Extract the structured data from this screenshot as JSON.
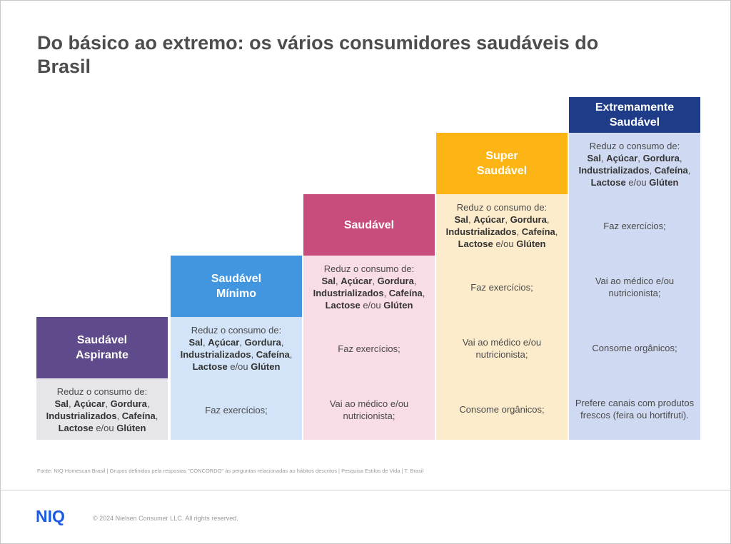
{
  "title": "Do básico ao extremo: os vários consumidores saudáveis do Brasil",
  "reduce": {
    "prefix": "Reduz o consumo de:",
    "items": [
      "Sal",
      "Açúcar",
      "Gordura",
      "Industrializados",
      "Cafeína",
      "Lactose",
      "Glúten"
    ],
    "sep": ", ",
    "connector": " e/ou "
  },
  "columns": [
    {
      "name": "Saudável Aspirante",
      "line1": "Saudável",
      "line2": "Aspirante",
      "head_color": "#5f4b8b",
      "body_color": "#e6e6ea",
      "cells": []
    },
    {
      "name": "Saudável Mínimo",
      "line1": "Saudável",
      "line2": "Mínimo",
      "head_color": "#4296e0",
      "body_color": "#d3e4f8",
      "cells": [
        "Faz exercícios;"
      ]
    },
    {
      "name": "Saudável",
      "line1": "Saudável",
      "line2": "",
      "head_color": "#c84c7c",
      "body_color": "#f9dde6",
      "cells": [
        "Faz exercícios;",
        "Vai ao médico e/ou nutricionista;"
      ]
    },
    {
      "name": "Super Saudável",
      "line1": "Super",
      "line2": "Saudável",
      "head_color": "#fdb515",
      "body_color": "#fdeccb",
      "cells": [
        "Faz exercícios;",
        "Vai ao médico e/ou nutricionista;",
        "Consome orgânicos;"
      ]
    },
    {
      "name": "Extremamente Saudável",
      "line1": "Extremamente",
      "line2": "Saudável",
      "head_color": "#1f3c88",
      "body_color": "#cfdaf2",
      "cells": [
        "Faz exercícios;",
        "Vai ao médico e/ou nutricionista;",
        "Consome orgânicos;",
        "Prefere canais com produtos frescos (feira ou hortifruti)."
      ]
    }
  ],
  "footnote": "Fonte: NIQ Homescan Brasil | Grupos definidos pela respostas \"CONCORDO\" às perguntas relacionadas ao hábitos descritos | Pesquisa Estilos de Vida | T. Brasil",
  "footer": {
    "logo": "NIQ",
    "copyright": "© 2024 Nielsen Consumer LLC. All rights reserved."
  }
}
